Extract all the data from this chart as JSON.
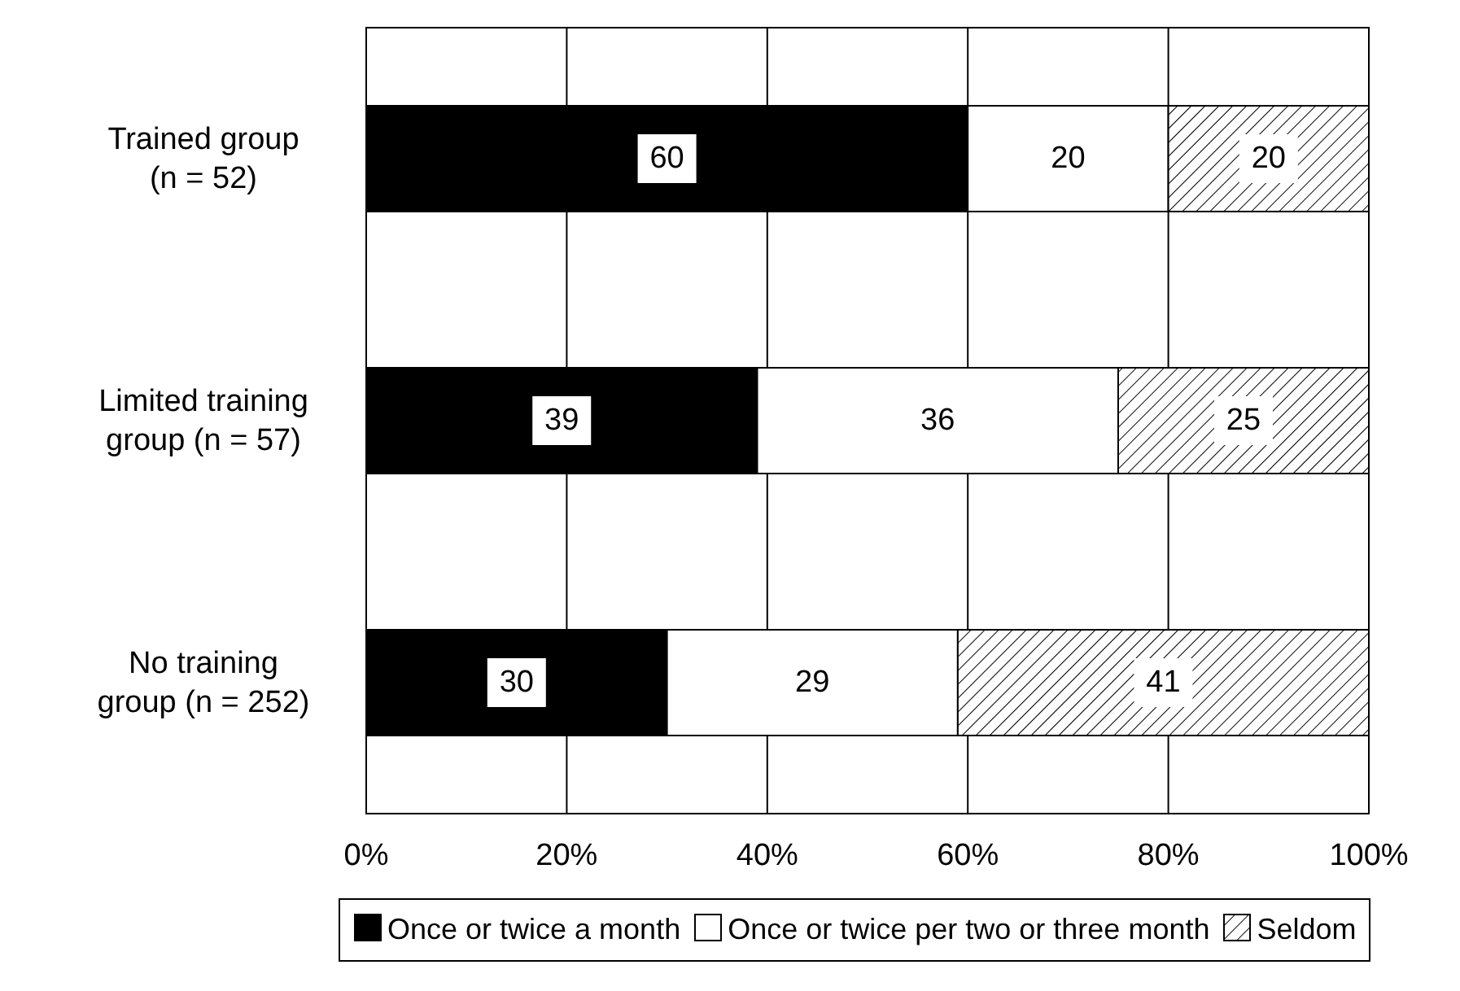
{
  "chart_data": {
    "type": "bar",
    "orientation": "horizontal",
    "stacked": true,
    "categories": [
      "Trained group (n = 52)",
      "Limited training group (n = 57)",
      "No training group (n = 252)"
    ],
    "series": [
      {
        "name": "Once or twice a month",
        "color": "#000000",
        "values": [
          60,
          39,
          30
        ]
      },
      {
        "name": "Once or twice per two or three month",
        "color": "#ffffff",
        "values": [
          20,
          36,
          29
        ]
      },
      {
        "name": "Seldom",
        "color": "#000000",
        "values": [
          20,
          25,
          41
        ]
      }
    ],
    "xlim": [
      0,
      100
    ],
    "xticks": [
      {
        "value": 0,
        "label": "0%"
      },
      {
        "value": 20,
        "label": "20%"
      },
      {
        "value": 40,
        "label": "40%"
      },
      {
        "value": 60,
        "label": "60%"
      },
      {
        "value": 80,
        "label": "80%"
      },
      {
        "value": 100,
        "label": "100%"
      }
    ],
    "grid": "x",
    "legend": "bottom",
    "data_labels": true
  }
}
